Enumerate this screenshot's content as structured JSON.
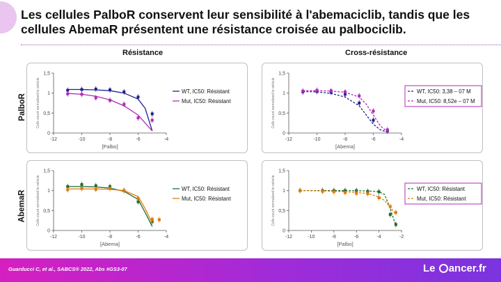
{
  "slide": {
    "title": "Les cellules PalboR conservent leur sensibilité à l'abemaciclib, tandis que les cellules AbemaR présentent une résistance croisée au palbociclib.",
    "col_left": "Résistance",
    "col_right": "Cross-résistance",
    "row_top": "PalboR",
    "row_bottom": "AbemaR",
    "citation": "Guarducci C, et al., SABCS® 2022, Abs #GS3-07",
    "logo_text_1": "Le ",
    "logo_text_2": "ancer.fr"
  },
  "colors": {
    "navy": "#1f1f8f",
    "purple": "#b02ab8",
    "green": "#1e6b2e",
    "orange": "#e07b0a",
    "axis": "#595959"
  },
  "chart_data": [
    {
      "id": "p1",
      "type": "scatter",
      "xlabel": "[Palbo]",
      "ylabel": "Cells count normalized to vehicle",
      "xlim": [
        -12,
        -4
      ],
      "ylim": [
        0,
        1.5
      ],
      "xticks": [
        -12,
        -10,
        -8,
        -6,
        -4
      ],
      "yticks": [
        0,
        0.5,
        1,
        1.5
      ],
      "xtick_labels": [
        "-12",
        "-10",
        "-8",
        "-6",
        "-4"
      ],
      "ytick_labels": [
        "0",
        "0,5",
        "1",
        "1,5"
      ],
      "legend_box": false,
      "series": [
        {
          "name": "WT, IC50: Résistant",
          "color": "#1f1f8f",
          "dash": false,
          "points": [
            [
              -11,
              1.07
            ],
            [
              -10,
              1.09
            ],
            [
              -9,
              1.1
            ],
            [
              -8,
              1.08
            ],
            [
              -7,
              1.03
            ],
            [
              -6,
              0.9
            ],
            [
              -5,
              0.48
            ]
          ],
          "curve": [
            [
              -11,
              1.09
            ],
            [
              -10,
              1.09
            ],
            [
              -9,
              1.08
            ],
            [
              -8,
              1.06
            ],
            [
              -7,
              1.0
            ],
            [
              -6,
              0.85
            ],
            [
              -5.5,
              0.62
            ],
            [
              -5,
              0.05
            ]
          ]
        },
        {
          "name": "Mut, IC50: Résistant",
          "color": "#b02ab8",
          "dash": false,
          "points": [
            [
              -11,
              0.98
            ],
            [
              -10,
              0.97
            ],
            [
              -9,
              0.88
            ],
            [
              -8,
              0.82
            ],
            [
              -7,
              0.72
            ],
            [
              -6,
              0.38
            ],
            [
              -5,
              0.32
            ]
          ],
          "curve": [
            [
              -11,
              0.99
            ],
            [
              -10,
              0.97
            ],
            [
              -9,
              0.92
            ],
            [
              -8,
              0.83
            ],
            [
              -7,
              0.68
            ],
            [
              -6,
              0.45
            ],
            [
              -5.5,
              0.25
            ],
            [
              -5,
              0.05
            ]
          ]
        }
      ]
    },
    {
      "id": "p2",
      "type": "scatter",
      "xlabel": "[Abema]",
      "ylabel": "Cells count normalized to vehicle",
      "xlim": [
        -12,
        -4
      ],
      "ylim": [
        0,
        1.5
      ],
      "xticks": [
        -12,
        -10,
        -8,
        -6,
        -4
      ],
      "yticks": [
        0,
        0.5,
        1,
        1.5
      ],
      "xtick_labels": [
        "-12",
        "-10",
        "-8",
        "-6",
        "-4"
      ],
      "ytick_labels": [
        "0",
        "0,5",
        "1",
        "1,5"
      ],
      "legend_box": true,
      "series": [
        {
          "name": "WT, IC50: 3,38 – 07 M",
          "color": "#1f1f8f",
          "dash": true,
          "points": [
            [
              -11,
              1.03
            ],
            [
              -10,
              1.04
            ],
            [
              -9,
              1.02
            ],
            [
              -8,
              0.97
            ],
            [
              -7,
              0.75
            ],
            [
              -6,
              0.32
            ],
            [
              -5,
              0.05
            ]
          ],
          "curve": [
            [
              -11,
              1.04
            ],
            [
              -10,
              1.03
            ],
            [
              -9,
              0.99
            ],
            [
              -8,
              0.9
            ],
            [
              -7,
              0.68
            ],
            [
              -6.5,
              0.45
            ],
            [
              -6,
              0.22
            ],
            [
              -5.5,
              0.08
            ],
            [
              -5,
              0.02
            ]
          ]
        },
        {
          "name": "Mut, IC50: 8,52e – 07 M",
          "color": "#b02ab8",
          "dash": true,
          "points": [
            [
              -11,
              1.05
            ],
            [
              -10,
              1.07
            ],
            [
              -9,
              1.06
            ],
            [
              -8,
              1.03
            ],
            [
              -7,
              0.93
            ],
            [
              -6,
              0.55
            ],
            [
              -5,
              0.08
            ]
          ],
          "curve": [
            [
              -11,
              1.06
            ],
            [
              -10,
              1.06
            ],
            [
              -9,
              1.05
            ],
            [
              -8,
              1.02
            ],
            [
              -7,
              0.9
            ],
            [
              -6.5,
              0.72
            ],
            [
              -6,
              0.45
            ],
            [
              -5.5,
              0.18
            ],
            [
              -5,
              0.03
            ]
          ]
        }
      ]
    },
    {
      "id": "p3",
      "type": "scatter",
      "xlabel": "[Abema]",
      "ylabel": "Cells count normalized to vehicle",
      "xlim": [
        -12,
        -4
      ],
      "ylim": [
        0,
        1.5
      ],
      "xticks": [
        -12,
        -10,
        -8,
        -6,
        -4
      ],
      "yticks": [
        0,
        0.5,
        1,
        1.5
      ],
      "xtick_labels": [
        "-12",
        "-10",
        "-8",
        "-6",
        "-4"
      ],
      "ytick_labels": [
        "0",
        "0,5",
        "1",
        "1,5"
      ],
      "legend_box": false,
      "series": [
        {
          "name": "WT, IC50: Résistant",
          "color": "#1e6b2e",
          "dash": false,
          "points": [
            [
              -11,
              1.1
            ],
            [
              -10,
              1.15
            ],
            [
              -9,
              1.12
            ],
            [
              -8,
              1.1
            ],
            [
              -7,
              1.0
            ],
            [
              -6,
              0.72
            ],
            [
              -5,
              0.22
            ]
          ],
          "curve": [
            [
              -11,
              1.1
            ],
            [
              -10,
              1.1
            ],
            [
              -9,
              1.09
            ],
            [
              -8,
              1.06
            ],
            [
              -7,
              0.98
            ],
            [
              -6,
              0.78
            ],
            [
              -5.5,
              0.45
            ],
            [
              -5,
              0.1
            ]
          ]
        },
        {
          "name": "Mut, IC50: Résistant",
          "color": "#e07b0a",
          "dash": false,
          "points": [
            [
              -11,
              1.02
            ],
            [
              -10,
              1.05
            ],
            [
              -9,
              1.03
            ],
            [
              -8,
              1.05
            ],
            [
              -7,
              1.0
            ],
            [
              -6,
              0.8
            ],
            [
              -5,
              0.28
            ],
            [
              -4.5,
              0.27
            ]
          ],
          "curve": [
            [
              -11,
              1.04
            ],
            [
              -10,
              1.04
            ],
            [
              -9,
              1.04
            ],
            [
              -8,
              1.03
            ],
            [
              -7,
              1.0
            ],
            [
              -6,
              0.85
            ],
            [
              -5.5,
              0.55
            ],
            [
              -5,
              0.18
            ]
          ]
        }
      ]
    },
    {
      "id": "p4",
      "type": "scatter",
      "xlabel": "[Palbo]",
      "ylabel": "Cells count normalized to vehicle",
      "xlim": [
        -12,
        -2
      ],
      "ylim": [
        0,
        1.5
      ],
      "xticks": [
        -12,
        -10,
        -8,
        -6,
        -4,
        -2
      ],
      "yticks": [
        0,
        0.5,
        1,
        1.5
      ],
      "xtick_labels": [
        "-12",
        "-10",
        "-8",
        "-6",
        "-4",
        "-2"
      ],
      "ytick_labels": [
        "0",
        "0,5",
        "1",
        "1,5"
      ],
      "legend_box": true,
      "series": [
        {
          "name": "WT, IC50: Résistant",
          "color": "#1e6b2e",
          "dash": true,
          "points": [
            [
              -11,
              1.0
            ],
            [
              -9,
              1.0
            ],
            [
              -8,
              1.0
            ],
            [
              -7,
              1.0
            ],
            [
              -6,
              1.0
            ],
            [
              -5,
              0.98
            ],
            [
              -4,
              0.97
            ],
            [
              -3,
              0.4
            ],
            [
              -2.5,
              0.15
            ]
          ],
          "curve": [
            [
              -11,
              1.0
            ],
            [
              -9,
              1.0
            ],
            [
              -7,
              1.0
            ],
            [
              -5,
              0.99
            ],
            [
              -4,
              0.97
            ],
            [
              -3.5,
              0.9
            ],
            [
              -3,
              0.55
            ],
            [
              -2.5,
              0.12
            ]
          ]
        },
        {
          "name": "Mut, IC50: Résistant",
          "color": "#e07b0a",
          "dash": true,
          "points": [
            [
              -11,
              1.0
            ],
            [
              -9,
              0.98
            ],
            [
              -8,
              0.97
            ],
            [
              -7,
              0.95
            ],
            [
              -6,
              0.93
            ],
            [
              -5,
              0.92
            ],
            [
              -4,
              0.82
            ],
            [
              -3,
              0.6
            ],
            [
              -2.5,
              0.45
            ]
          ],
          "curve": [
            [
              -11,
              1.0
            ],
            [
              -9,
              0.99
            ],
            [
              -7,
              0.97
            ],
            [
              -5,
              0.93
            ],
            [
              -4,
              0.84
            ],
            [
              -3.5,
              0.75
            ],
            [
              -3,
              0.58
            ],
            [
              -2.5,
              0.4
            ]
          ]
        }
      ]
    }
  ]
}
